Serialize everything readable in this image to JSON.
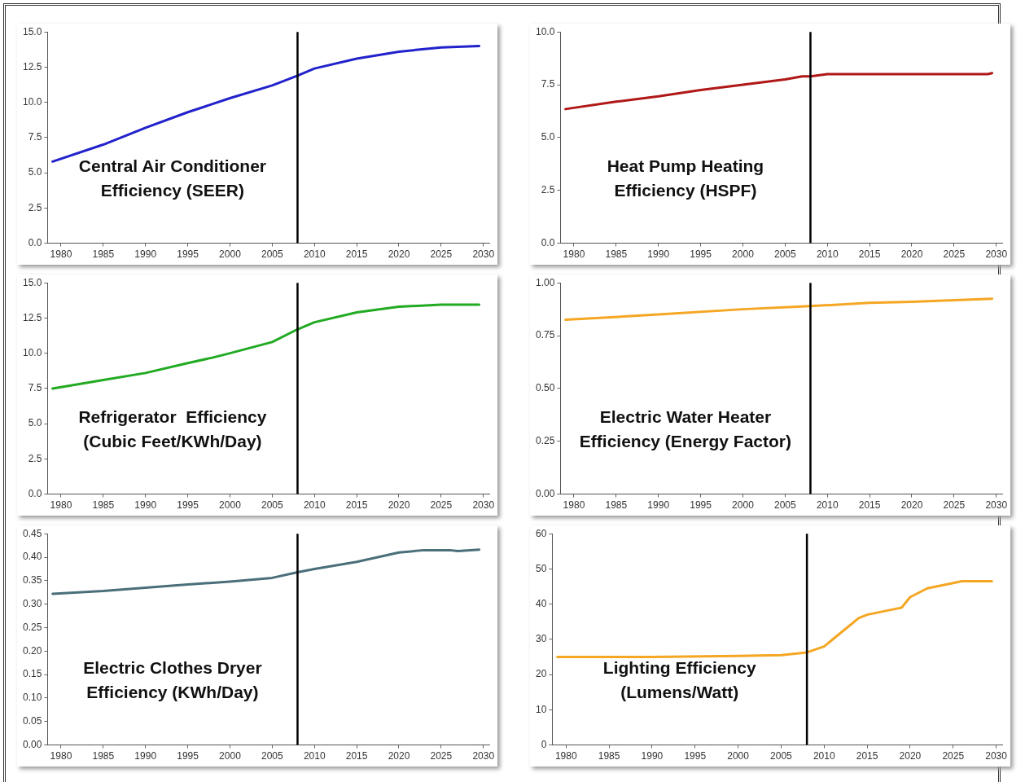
{
  "chart_data": [
    {
      "type": "line",
      "title": "Central Air Conditioner Efficiency (SEER)",
      "x": [
        1979,
        1985,
        1990,
        1995,
        2000,
        2005,
        2008,
        2010,
        2015,
        2020,
        2025,
        2029.5
      ],
      "series": [
        {
          "color": "#2222cc",
          "values": [
            5.8,
            7.0,
            8.2,
            9.3,
            10.3,
            11.2,
            11.9,
            12.4,
            13.1,
            13.6,
            13.9,
            14.0
          ]
        }
      ],
      "xlim": [
        1978.4,
        2030.7
      ],
      "xticks": [
        1980,
        1985,
        1990,
        1995,
        2000,
        2005,
        2010,
        2015,
        2020,
        2025,
        2030
      ],
      "ylim": [
        0,
        15
      ],
      "yticks": [
        {
          "value": 0,
          "label": "0.0"
        },
        {
          "value": 2.5,
          "label": "2.5"
        },
        {
          "value": 5,
          "label": "5.0"
        },
        {
          "value": 7.5,
          "label": "7.5"
        },
        {
          "value": 10,
          "label": "10.0"
        },
        {
          "value": 12.5,
          "label": "12.5"
        },
        {
          "value": 15,
          "label": "15.0"
        }
      ],
      "ref_lines": [
        {
          "axis": "x",
          "value": 2008,
          "color": "#000000"
        }
      ],
      "grid": false,
      "legend": false,
      "marker": "none",
      "line_style": "solid"
    },
    {
      "type": "line",
      "title": "Heat Pump Heating Efficiency (HSPF)",
      "x": [
        1979,
        1985,
        1990,
        1995,
        2000,
        2005,
        2007,
        2008,
        2010,
        2020,
        2029,
        2029.5
      ],
      "series": [
        {
          "color": "#b01818",
          "values": [
            6.35,
            6.7,
            6.95,
            7.25,
            7.5,
            7.75,
            7.9,
            7.9,
            8.0,
            8.0,
            8.0,
            8.05
          ]
        }
      ],
      "xlim": [
        1978.4,
        2030.7
      ],
      "xticks": [
        1980,
        1985,
        1990,
        1995,
        2000,
        2005,
        2010,
        2015,
        2020,
        2025,
        2030
      ],
      "ylim": [
        0,
        10
      ],
      "yticks": [
        {
          "value": 0,
          "label": "0.0"
        },
        {
          "value": 2.5,
          "label": "2.5"
        },
        {
          "value": 5,
          "label": "5.0"
        },
        {
          "value": 7.5,
          "label": "7.5"
        },
        {
          "value": 10,
          "label": "10.0"
        }
      ],
      "ref_lines": [
        {
          "axis": "x",
          "value": 2008,
          "color": "#000000"
        }
      ],
      "grid": false,
      "legend": false,
      "marker": "none",
      "line_style": "solid"
    },
    {
      "type": "line",
      "title": "Refrigerator  Efficiency (Cubic Feet/KWh/Day)",
      "x": [
        1979,
        1985,
        1990,
        1995,
        1998,
        2000,
        2005,
        2008,
        2010,
        2015,
        2020,
        2025,
        2029.5
      ],
      "series": [
        {
          "color": "#22aa22",
          "values": [
            7.5,
            8.1,
            8.6,
            9.3,
            9.7,
            10.0,
            10.8,
            11.7,
            12.2,
            12.9,
            13.3,
            13.45,
            13.45
          ]
        }
      ],
      "xlim": [
        1978.4,
        2030.7
      ],
      "xticks": [
        1980,
        1985,
        1990,
        1995,
        2000,
        2005,
        2010,
        2015,
        2020,
        2025,
        2030
      ],
      "ylim": [
        0,
        15
      ],
      "yticks": [
        {
          "value": 0,
          "label": "0.0"
        },
        {
          "value": 2.5,
          "label": "2.5"
        },
        {
          "value": 5,
          "label": "5.0"
        },
        {
          "value": 7.5,
          "label": "7.5"
        },
        {
          "value": 10,
          "label": "10.0"
        },
        {
          "value": 12.5,
          "label": "12.5"
        },
        {
          "value": 15,
          "label": "15.0"
        }
      ],
      "ref_lines": [
        {
          "axis": "x",
          "value": 2008,
          "color": "#000000"
        }
      ],
      "grid": false,
      "legend": false,
      "marker": "none",
      "line_style": "solid"
    },
    {
      "type": "line",
      "title": "Electric Water Heater Efficiency (Energy Factor)",
      "x": [
        1979,
        1990,
        2000,
        2008,
        2015,
        2020,
        2029.5
      ],
      "series": [
        {
          "color": "#f5a623",
          "values": [
            0.825,
            0.85,
            0.875,
            0.89,
            0.905,
            0.91,
            0.925
          ]
        }
      ],
      "xlim": [
        1978.4,
        2030.7
      ],
      "xticks": [
        1980,
        1985,
        1990,
        1995,
        2000,
        2005,
        2010,
        2015,
        2020,
        2025,
        2030
      ],
      "ylim": [
        0,
        1
      ],
      "yticks": [
        {
          "value": 0,
          "label": "0.00"
        },
        {
          "value": 0.25,
          "label": "0.25"
        },
        {
          "value": 0.5,
          "label": "0.50"
        },
        {
          "value": 0.75,
          "label": "0.75"
        },
        {
          "value": 1,
          "label": "1.00"
        }
      ],
      "ref_lines": [
        {
          "axis": "x",
          "value": 2008,
          "color": "#000000"
        }
      ],
      "grid": false,
      "legend": false,
      "marker": "none",
      "line_style": "solid"
    },
    {
      "type": "line",
      "title": "Electric Clothes Dryer Efficiency (KWh/Day)",
      "x": [
        1979,
        1985,
        1990,
        1995,
        2000,
        2005,
        2008,
        2010,
        2015,
        2020,
        2023,
        2026,
        2027,
        2029.5
      ],
      "series": [
        {
          "color": "#4a6f7a",
          "values": [
            0.322,
            0.328,
            0.335,
            0.342,
            0.348,
            0.356,
            0.368,
            0.375,
            0.39,
            0.41,
            0.415,
            0.415,
            0.413,
            0.416
          ]
        }
      ],
      "xlim": [
        1978.4,
        2030.7
      ],
      "xticks": [
        1980,
        1985,
        1990,
        1995,
        2000,
        2005,
        2010,
        2015,
        2020,
        2025,
        2030
      ],
      "ylim": [
        0,
        0.45
      ],
      "yticks": [
        {
          "value": 0,
          "label": "0.00"
        },
        {
          "value": 0.05,
          "label": "0.05"
        },
        {
          "value": 0.1,
          "label": "0.10"
        },
        {
          "value": 0.15,
          "label": "0.15"
        },
        {
          "value": 0.2,
          "label": "0.20"
        },
        {
          "value": 0.25,
          "label": "0.25"
        },
        {
          "value": 0.3,
          "label": "0.30"
        },
        {
          "value": 0.35,
          "label": "0.35"
        },
        {
          "value": 0.4,
          "label": "0.40"
        },
        {
          "value": 0.45,
          "label": "0.45"
        }
      ],
      "ref_lines": [
        {
          "axis": "x",
          "value": 2008,
          "color": "#000000"
        }
      ],
      "grid": false,
      "legend": false,
      "marker": "none",
      "line_style": "solid"
    },
    {
      "type": "line",
      "title": "Lighting Efficiency (Lumens/Watt)",
      "x": [
        1979,
        1990,
        2000,
        2005,
        2008,
        2010,
        2012,
        2014,
        2015,
        2018,
        2019,
        2020,
        2022,
        2025,
        2026,
        2029.5
      ],
      "series": [
        {
          "color": "#f5a623",
          "values": [
            25,
            25,
            25.3,
            25.5,
            26.3,
            28,
            32,
            36,
            37,
            38.5,
            39,
            42,
            44.5,
            46,
            46.5,
            46.5
          ]
        }
      ],
      "xlim": [
        1978.4,
        2030.7
      ],
      "xticks": [
        1980,
        1985,
        1990,
        1995,
        2000,
        2005,
        2010,
        2015,
        2020,
        2025,
        2030
      ],
      "ylim": [
        0,
        60
      ],
      "yticks": [
        0,
        10,
        20,
        30,
        40,
        50,
        60
      ],
      "ref_lines": [
        {
          "axis": "x",
          "value": 2008,
          "color": "#000000"
        }
      ],
      "grid": false,
      "legend": false,
      "marker": "none",
      "line_style": "solid"
    }
  ]
}
